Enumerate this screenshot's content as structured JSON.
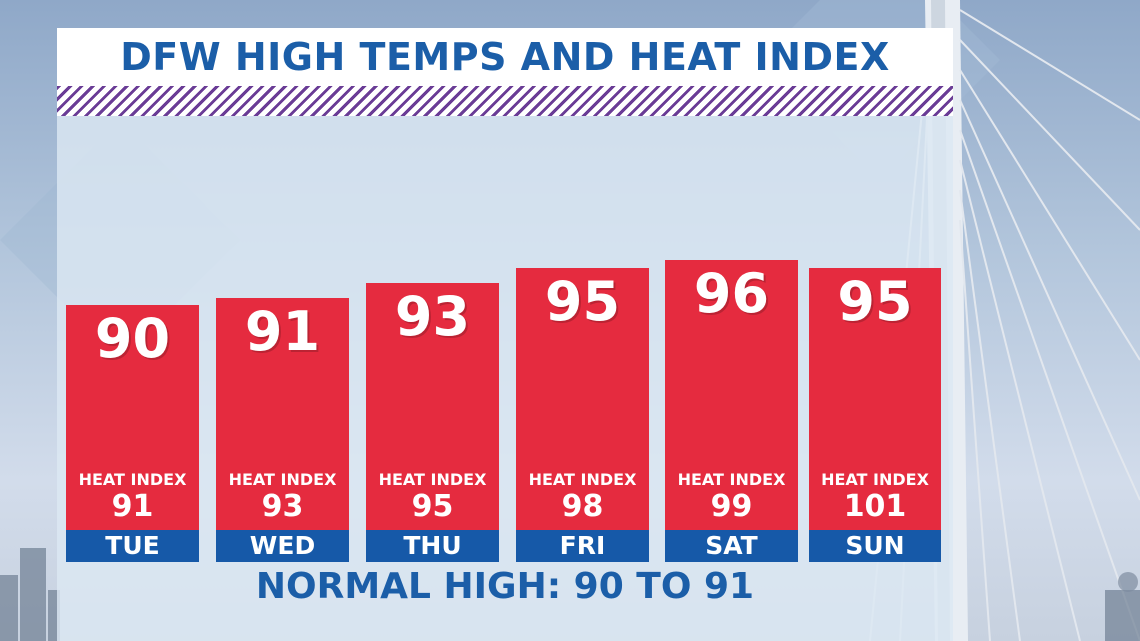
{
  "title": "DFW HIGH TEMPS AND HEAT INDEX",
  "heat_index_label": "HEAT INDEX",
  "normal_high": "NORMAL HIGH: 90 TO 91",
  "colors": {
    "bar": "#e52b3f",
    "day_label_bg": "#1659a8",
    "title_text": "#1b5ea8",
    "stripe": "#6a3c96"
  },
  "chart_data": {
    "type": "bar",
    "title": "DFW HIGH TEMPS AND HEAT INDEX",
    "categories": [
      "TUE",
      "WED",
      "THU",
      "FRI",
      "SAT",
      "SUN"
    ],
    "series": [
      {
        "name": "",
        "values": [
          90,
          91,
          93,
          95,
          96,
          95
        ]
      },
      {
        "name": "HEAT INDEX",
        "values": [
          91,
          93,
          95,
          98,
          99,
          101
        ]
      }
    ],
    "annotations": [
      "NORMAL HIGH: 90 TO 91"
    ],
    "grid": false,
    "legend": "none"
  }
}
